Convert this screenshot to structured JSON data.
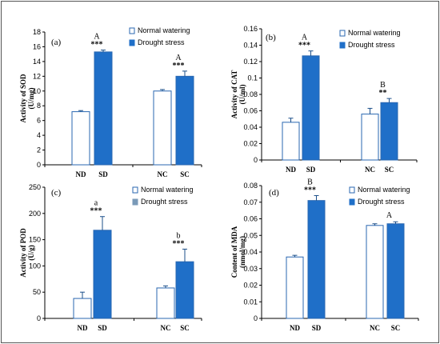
{
  "colors": {
    "normal": "#ffffff",
    "drought": "#1f6fc8",
    "drought_c": "#7a9ab8",
    "border": "#2a67b1",
    "frame": "#555555"
  },
  "chart_data": [
    {
      "type": "bar",
      "panel": "(a)",
      "ylabel_lines": [
        "Activity of SOD",
        "(U/mg)"
      ],
      "ylim": [
        0,
        18
      ],
      "yticks": [
        "0",
        "2",
        "4",
        "6",
        "8",
        "10",
        "12",
        "14",
        "16",
        "18"
      ],
      "categories": [
        "ND",
        "SD",
        "NC",
        "SC"
      ],
      "values": [
        7.2,
        15.3,
        10.0,
        12.0
      ],
      "errors": [
        0.15,
        0.25,
        0.2,
        0.7
      ],
      "series_of_bar": [
        "normal",
        "drought",
        "normal",
        "drought"
      ],
      "legend": [
        "Normal watering",
        "Drought stress"
      ],
      "annotations": [
        {
          "letter": "A",
          "stars": "***",
          "category": "SD"
        },
        {
          "letter": "A",
          "stars": "***",
          "category": "SC"
        }
      ]
    },
    {
      "type": "bar",
      "panel": "(b)",
      "ylabel_lines": [
        "Activity of CAT",
        "(U/ml)"
      ],
      "ylim": [
        0,
        0.16
      ],
      "yticks": [
        "0",
        "0.02",
        "0.04",
        "0.06",
        "0.08",
        "0.1",
        "0.12",
        "0.14",
        "0.16"
      ],
      "categories": [
        "ND",
        "SD",
        "NC",
        "SC"
      ],
      "values": [
        0.046,
        0.127,
        0.056,
        0.07
      ],
      "errors": [
        0.005,
        0.006,
        0.007,
        0.005
      ],
      "series_of_bar": [
        "normal",
        "drought",
        "normal",
        "drought"
      ],
      "legend": [
        "Normal watering",
        "Drought stress"
      ],
      "annotations": [
        {
          "letter": "A",
          "stars": "***",
          "category": "SD"
        },
        {
          "letter": "B",
          "stars": "**",
          "category": "SC"
        }
      ]
    },
    {
      "type": "bar",
      "panel": "(c)",
      "ylabel_lines": [
        "Activity of POD",
        "(U/g)"
      ],
      "ylim": [
        0,
        250
      ],
      "yticks": [
        "0",
        "50",
        "100",
        "150",
        "200",
        "250"
      ],
      "categories": [
        "ND",
        "SD",
        "NC",
        "SC"
      ],
      "values": [
        38,
        168,
        58,
        108
      ],
      "errors": [
        12,
        26,
        4,
        24
      ],
      "series_of_bar": [
        "normal",
        "drought",
        "normal",
        "drought"
      ],
      "legend": [
        "Normal watering",
        "Drought stress"
      ],
      "legend_drought_color": "drought_c",
      "annotations": [
        {
          "letter": "a",
          "stars": "***",
          "category": "SD"
        },
        {
          "letter": "b",
          "stars": "***",
          "category": "SC"
        }
      ]
    },
    {
      "type": "bar",
      "panel": "(d)",
      "ylabel_lines": [
        "Content of MDA",
        "(nmol/mg)"
      ],
      "ylim": [
        0,
        0.08
      ],
      "yticks": [
        "0",
        "0.01",
        "0.02",
        "0.03",
        "0.04",
        "0.05",
        "0.06",
        "0.07",
        "0.08"
      ],
      "categories": [
        "ND",
        "SD",
        "NC",
        "SC"
      ],
      "values": [
        0.037,
        0.071,
        0.056,
        0.057
      ],
      "errors": [
        0.001,
        0.003,
        0.001,
        0.0012
      ],
      "series_of_bar": [
        "normal",
        "drought",
        "normal",
        "drought"
      ],
      "legend": [
        "Normal watering",
        "Drought stress"
      ],
      "annotations": [
        {
          "letter": "B",
          "stars": "***",
          "category": "SD"
        },
        {
          "letter": "A",
          "stars": "",
          "category": "SC"
        }
      ]
    }
  ]
}
